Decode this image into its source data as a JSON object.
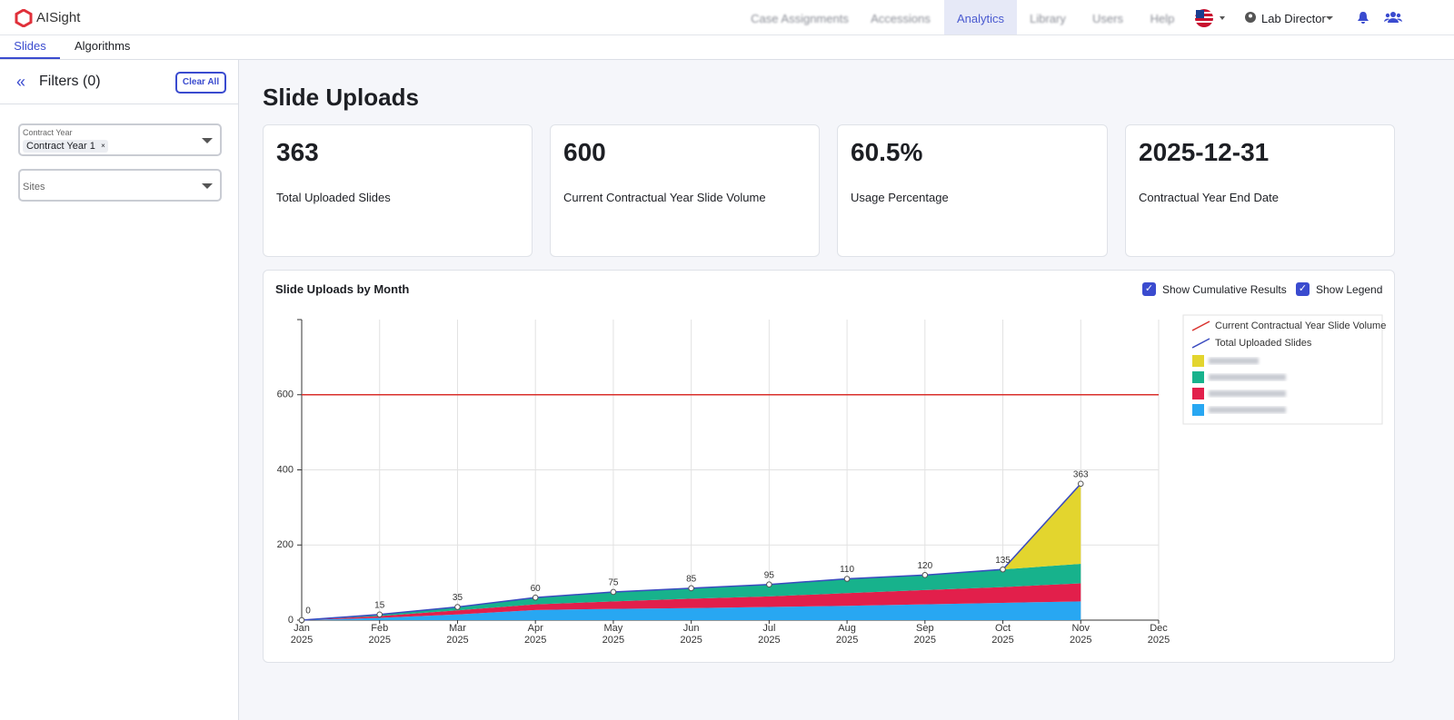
{
  "header": {
    "brand": "AISight",
    "nav": [
      "Case Assignments",
      "Accessions",
      "Analytics",
      "Library",
      "Users",
      "Help"
    ],
    "user": "Lab Director"
  },
  "tabs": [
    "Slides",
    "Algorithms"
  ],
  "filters": {
    "title": "Filters (0)",
    "clear": "Clear All",
    "contract_year_label": "Contract Year",
    "contract_year_value": "Contract Year 1",
    "sites_label": "Sites"
  },
  "page_title": "Slide Uploads",
  "kpis": [
    {
      "value": "363",
      "label": "Total Uploaded Slides"
    },
    {
      "value": "600",
      "label": "Current Contractual Year Slide Volume"
    },
    {
      "value": "60.5%",
      "label": "Usage Percentage"
    },
    {
      "value": "2025-12-31",
      "label": "Contractual Year End Date"
    }
  ],
  "chart_data": {
    "type": "stacked-area",
    "title": "Slide Uploads by Month",
    "toggles": [
      "Show Cumulative Results",
      "Show Legend"
    ],
    "categories": [
      "Jan 2025",
      "Feb 2025",
      "Mar 2025",
      "Apr 2025",
      "May 2025",
      "Jun 2025",
      "Jul 2025",
      "Aug 2025",
      "Sep 2025",
      "Oct 2025",
      "Nov 2025",
      "Dec 2025"
    ],
    "series": [
      {
        "color": "#28a7f2",
        "values": [
          0,
          6,
          15,
          27,
          30,
          32,
          35,
          38,
          42,
          46,
          50,
          null
        ]
      },
      {
        "color": "#e21f4b",
        "values": [
          0,
          5,
          11,
          15,
          20,
          25,
          28,
          34,
          38,
          42,
          48,
          null
        ]
      },
      {
        "color": "#17b28c",
        "values": [
          0,
          4,
          9,
          18,
          25,
          28,
          32,
          38,
          40,
          47,
          52,
          null
        ]
      },
      {
        "color": "#e3d52e",
        "values": [
          0,
          0,
          0,
          0,
          0,
          0,
          0,
          0,
          0,
          0,
          213,
          null
        ]
      }
    ],
    "line_series": {
      "name": "Total Uploaded Slides",
      "color": "#3a4bbf",
      "values": [
        0,
        15,
        35,
        60,
        75,
        85,
        95,
        110,
        120,
        135,
        363,
        null
      ]
    },
    "reference_line": {
      "name": "Current Contractual Year Slide Volume",
      "value": 600,
      "color": "#d9302c"
    },
    "ylim": [
      0,
      800
    ],
    "yticks": [
      0,
      200,
      400,
      600
    ],
    "grid": true,
    "legend": "top-right"
  }
}
